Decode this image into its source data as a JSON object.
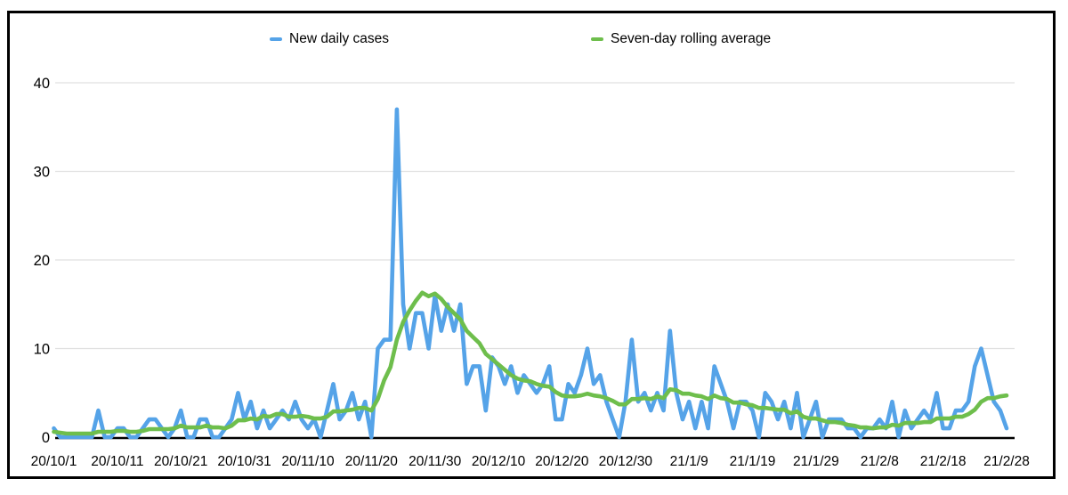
{
  "chart_data": {
    "type": "line",
    "title": "",
    "grid": true,
    "legend_position": "top",
    "ylim": [
      0,
      40
    ],
    "y_ticks": [
      0,
      10,
      20,
      30,
      40
    ],
    "x_tick_labels": [
      "20/10/1",
      "20/10/11",
      "20/10/21",
      "20/10/31",
      "20/11/10",
      "20/11/20",
      "20/11/30",
      "20/12/10",
      "20/12/20",
      "20/12/30",
      "21/1/9",
      "21/1/19",
      "21/1/29",
      "21/2/8",
      "21/2/18",
      "21/2/28"
    ],
    "x_tick_interval_days": 10,
    "series": [
      {
        "name": "New daily cases",
        "color": "#55A3E8",
        "values": [
          1,
          0,
          0,
          0,
          0,
          0,
          0,
          3,
          0,
          0,
          1,
          1,
          0,
          0,
          1,
          2,
          2,
          1,
          0,
          1,
          3,
          0,
          0,
          2,
          2,
          0,
          0,
          1,
          2,
          5,
          2,
          4,
          1,
          3,
          1,
          2,
          3,
          2,
          4,
          2,
          1,
          2,
          0,
          3,
          6,
          2,
          3,
          5,
          2,
          4,
          0,
          10,
          11,
          11,
          37,
          15,
          10,
          14,
          14,
          10,
          16,
          12,
          15,
          12,
          15,
          6,
          8,
          8,
          3,
          9,
          8,
          6,
          8,
          5,
          7,
          6,
          5,
          6,
          8,
          2,
          2,
          6,
          5,
          7,
          10,
          6,
          7,
          4,
          2,
          0,
          4,
          11,
          4,
          5,
          3,
          5,
          3,
          12,
          5,
          2,
          4,
          1,
          4,
          1,
          8,
          6,
          4,
          1,
          4,
          4,
          3,
          0,
          5,
          4,
          2,
          4,
          1,
          5,
          0,
          2,
          4,
          0,
          2,
          2,
          2,
          1,
          1,
          0,
          1,
          1,
          2,
          1,
          4,
          0,
          3,
          1,
          2,
          3,
          2,
          5,
          1,
          1,
          3,
          3,
          4,
          8,
          10,
          7,
          4,
          3,
          1
        ]
      },
      {
        "name": "Seven-day rolling average",
        "color": "#6EBE4C",
        "values": [
          0.6,
          0.5,
          0.4,
          0.4,
          0.4,
          0.4,
          0.4,
          0.6,
          0.6,
          0.6,
          0.7,
          0.7,
          0.6,
          0.6,
          0.7,
          0.9,
          0.9,
          0.9,
          0.9,
          1.0,
          1.3,
          1.1,
          1.1,
          1.1,
          1.3,
          1.1,
          1.1,
          1.0,
          1.3,
          1.9,
          1.9,
          2.1,
          2.0,
          2.4,
          2.3,
          2.6,
          2.6,
          2.3,
          2.3,
          2.4,
          2.3,
          2.1,
          2.1,
          2.3,
          2.9,
          2.9,
          3.0,
          3.1,
          3.3,
          3.3,
          3.0,
          4.3,
          6.4,
          7.9,
          11.0,
          13.0,
          14.3,
          15.4,
          16.3,
          15.9,
          16.2,
          15.6,
          14.7,
          14.0,
          13.3,
          12.0,
          11.3,
          10.6,
          9.4,
          8.8,
          8.2,
          7.6,
          7.0,
          6.6,
          6.4,
          6.3,
          6.0,
          5.8,
          5.7,
          5.1,
          4.7,
          4.6,
          4.6,
          4.7,
          4.9,
          4.7,
          4.6,
          4.4,
          4.1,
          3.7,
          3.7,
          4.3,
          4.3,
          4.4,
          4.3,
          4.6,
          4.4,
          5.4,
          5.3,
          4.9,
          4.9,
          4.7,
          4.6,
          4.3,
          4.7,
          4.4,
          4.3,
          3.9,
          3.9,
          3.7,
          3.6,
          3.3,
          3.3,
          3.2,
          3.1,
          3.1,
          2.7,
          2.9,
          2.3,
          2.1,
          2.1,
          1.9,
          1.7,
          1.7,
          1.6,
          1.4,
          1.3,
          1.1,
          1.1,
          1.0,
          1.1,
          1.1,
          1.4,
          1.3,
          1.6,
          1.6,
          1.6,
          1.7,
          1.7,
          2.1,
          2.1,
          2.1,
          2.3,
          2.3,
          2.6,
          3.1,
          4.0,
          4.4,
          4.4,
          4.6,
          4.7
        ]
      }
    ]
  },
  "style": {
    "gridline_color": "#e0e0e0",
    "axis_color": "#000000",
    "background": "#ffffff"
  }
}
